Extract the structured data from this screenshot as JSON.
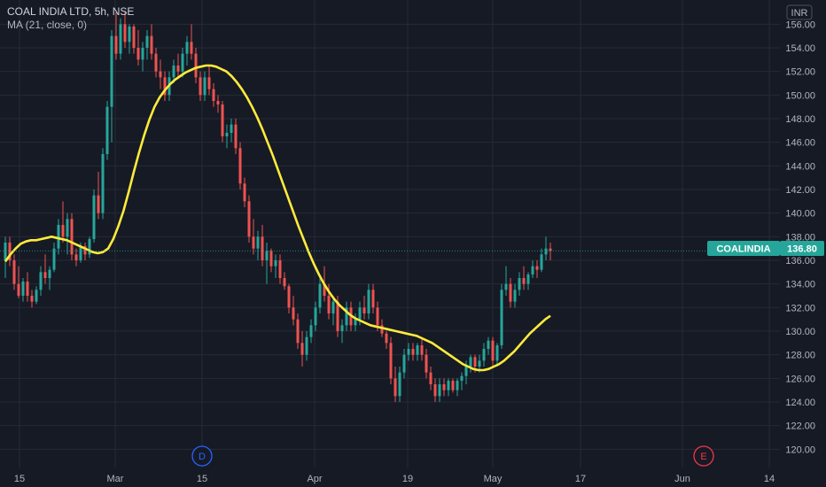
{
  "header": {
    "title": "COAL INDIA LTD, 5h, NSE",
    "indicator": "MA (21, close, 0)"
  },
  "currency": "INR",
  "price_tag": {
    "label": "COALINDIA",
    "value": "136.80"
  },
  "markers": {
    "dividend": "D",
    "earnings": "E"
  },
  "colors": {
    "background": "#161a25",
    "grid": "#252a36",
    "axis_text": "#b2b5be",
    "up": "#26a69a",
    "down": "#ef5350",
    "ma": "#ffeb3b",
    "tag": "#26a69a"
  },
  "chart_data": {
    "type": "candlestick",
    "title": "COAL INDIA LTD, 5h, NSE",
    "ylim": [
      118.6,
      157.6
    ],
    "y_ticks": [
      "120.00",
      "122.00",
      "124.00",
      "126.00",
      "128.00",
      "130.00",
      "132.00",
      "134.00",
      "136.00",
      "138.00",
      "140.00",
      "142.00",
      "144.00",
      "146.00",
      "148.00",
      "150.00",
      "152.00",
      "154.00",
      "156.00"
    ],
    "x_tick_labels": [
      "15",
      "Mar",
      "15",
      "Apr",
      "19",
      "May",
      "17",
      "Jun",
      "14"
    ],
    "last_price": 136.8,
    "ohlc": [
      [
        136.0,
        138.0,
        134.5,
        137.5
      ],
      [
        137.5,
        138.0,
        135.5,
        136.0
      ],
      [
        136.0,
        136.5,
        133.5,
        134.0
      ],
      [
        134.0,
        135.5,
        132.8,
        133.0
      ],
      [
        133.0,
        134.5,
        132.5,
        134.2
      ],
      [
        134.2,
        135.0,
        132.5,
        133.0
      ],
      [
        133.0,
        133.5,
        132.0,
        132.5
      ],
      [
        132.5,
        133.8,
        132.3,
        133.5
      ],
      [
        133.5,
        135.5,
        133.0,
        135.0
      ],
      [
        135.0,
        136.5,
        134.0,
        134.5
      ],
      [
        134.5,
        135.5,
        133.5,
        135.2
      ],
      [
        135.2,
        137.5,
        135.0,
        137.0
      ],
      [
        137.0,
        139.5,
        136.5,
        139.0
      ],
      [
        139.0,
        141.0,
        137.5,
        138.0
      ],
      [
        138.0,
        140.0,
        136.5,
        139.5
      ],
      [
        139.5,
        140.0,
        136.0,
        136.5
      ],
      [
        136.5,
        137.0,
        135.5,
        136.0
      ],
      [
        136.0,
        137.5,
        135.8,
        137.2
      ],
      [
        137.2,
        137.5,
        136.0,
        136.5
      ],
      [
        136.5,
        138.0,
        136.2,
        137.8
      ],
      [
        137.8,
        142.0,
        137.5,
        141.5
      ],
      [
        141.5,
        143.5,
        139.5,
        140.0
      ],
      [
        140.0,
        145.5,
        139.5,
        145.0
      ],
      [
        145.0,
        149.5,
        144.5,
        149.0
      ],
      [
        149.0,
        155.5,
        146.0,
        155.0
      ],
      [
        155.0,
        157.0,
        153.0,
        153.5
      ],
      [
        153.5,
        156.5,
        153.0,
        156.0
      ],
      [
        156.0,
        157.0,
        154.0,
        154.5
      ],
      [
        154.5,
        156.0,
        153.5,
        155.8
      ],
      [
        155.8,
        156.0,
        153.5,
        154.0
      ],
      [
        154.0,
        155.5,
        152.5,
        153.0
      ],
      [
        153.0,
        154.5,
        152.0,
        154.0
      ],
      [
        154.0,
        155.5,
        153.0,
        155.0
      ],
      [
        155.0,
        156.0,
        153.0,
        153.5
      ],
      [
        153.5,
        154.0,
        151.5,
        152.0
      ],
      [
        152.0,
        153.0,
        150.5,
        151.5
      ],
      [
        151.5,
        152.0,
        149.5,
        150.0
      ],
      [
        150.0,
        152.0,
        149.5,
        151.5
      ],
      [
        151.5,
        153.0,
        151.0,
        152.5
      ],
      [
        152.5,
        153.5,
        151.5,
        152.0
      ],
      [
        152.0,
        154.0,
        151.5,
        153.5
      ],
      [
        153.5,
        155.0,
        152.5,
        154.5
      ],
      [
        154.5,
        156.0,
        153.0,
        153.5
      ],
      [
        153.5,
        154.0,
        151.0,
        151.5
      ],
      [
        151.5,
        152.0,
        149.5,
        150.0
      ],
      [
        150.0,
        152.0,
        149.5,
        151.5
      ],
      [
        151.5,
        152.5,
        150.0,
        150.5
      ],
      [
        150.5,
        151.0,
        149.0,
        149.5
      ],
      [
        149.5,
        150.0,
        148.5,
        149.2
      ],
      [
        149.2,
        149.5,
        146.0,
        146.5
      ],
      [
        146.5,
        147.5,
        145.5,
        146.8
      ],
      [
        146.8,
        148.0,
        146.0,
        147.5
      ],
      [
        147.5,
        148.0,
        145.0,
        145.5
      ],
      [
        145.5,
        146.0,
        142.0,
        142.5
      ],
      [
        142.5,
        143.0,
        140.5,
        141.0
      ],
      [
        141.0,
        141.5,
        137.5,
        138.0
      ],
      [
        138.0,
        139.5,
        136.5,
        137.0
      ],
      [
        137.0,
        138.5,
        136.0,
        138.0
      ],
      [
        138.0,
        139.0,
        135.5,
        136.0
      ],
      [
        136.0,
        137.5,
        134.0,
        136.8
      ],
      [
        136.8,
        137.0,
        135.0,
        135.5
      ],
      [
        135.5,
        136.5,
        134.5,
        136.0
      ],
      [
        136.0,
        136.5,
        134.0,
        134.5
      ],
      [
        134.5,
        135.0,
        133.5,
        133.8
      ],
      [
        133.8,
        134.0,
        131.5,
        132.0
      ],
      [
        132.0,
        133.0,
        130.5,
        131.0
      ],
      [
        131.0,
        131.5,
        128.5,
        129.0
      ],
      [
        129.0,
        130.0,
        127.0,
        128.0
      ],
      [
        128.0,
        130.0,
        127.5,
        129.5
      ],
      [
        129.5,
        131.0,
        129.0,
        130.5
      ],
      [
        130.5,
        132.5,
        130.0,
        132.0
      ],
      [
        132.0,
        134.5,
        131.5,
        134.0
      ],
      [
        134.0,
        135.5,
        132.5,
        133.0
      ],
      [
        133.0,
        134.0,
        131.0,
        131.5
      ],
      [
        131.5,
        133.0,
        130.5,
        132.5
      ],
      [
        132.5,
        133.0,
        129.5,
        130.0
      ],
      [
        130.0,
        131.0,
        129.0,
        130.5
      ],
      [
        130.5,
        132.5,
        130.0,
        132.0
      ],
      [
        132.0,
        132.5,
        130.0,
        130.5
      ],
      [
        130.5,
        131.5,
        130.0,
        131.0
      ],
      [
        131.0,
        132.5,
        130.5,
        132.0
      ],
      [
        132.0,
        133.0,
        131.0,
        131.5
      ],
      [
        131.5,
        134.0,
        131.0,
        133.5
      ],
      [
        133.5,
        134.0,
        131.5,
        132.0
      ],
      [
        132.0,
        132.5,
        130.0,
        130.5
      ],
      [
        130.5,
        131.0,
        129.5,
        129.8
      ],
      [
        129.8,
        130.0,
        128.5,
        129.0
      ],
      [
        129.0,
        129.5,
        125.5,
        126.0
      ],
      [
        126.0,
        127.0,
        124.0,
        124.5
      ],
      [
        124.5,
        127.0,
        124.0,
        126.5
      ],
      [
        126.5,
        128.5,
        126.0,
        128.0
      ],
      [
        128.0,
        129.0,
        127.5,
        128.5
      ],
      [
        128.5,
        129.0,
        127.5,
        128.0
      ],
      [
        128.0,
        129.0,
        127.5,
        128.8
      ],
      [
        128.8,
        129.5,
        127.5,
        128.0
      ],
      [
        128.0,
        128.5,
        126.0,
        126.5
      ],
      [
        126.5,
        127.0,
        125.0,
        125.5
      ],
      [
        125.5,
        126.0,
        124.0,
        124.5
      ],
      [
        124.5,
        126.0,
        124.0,
        125.5
      ],
      [
        125.5,
        126.0,
        124.5,
        125.0
      ],
      [
        125.0,
        126.0,
        124.5,
        125.8
      ],
      [
        125.8,
        126.0,
        124.8,
        125.0
      ],
      [
        125.0,
        126.0,
        124.5,
        125.8
      ],
      [
        125.8,
        126.5,
        125.0,
        126.2
      ],
      [
        126.2,
        127.5,
        125.5,
        127.0
      ],
      [
        127.0,
        128.0,
        126.5,
        127.8
      ],
      [
        127.8,
        128.0,
        126.5,
        127.0
      ],
      [
        127.0,
        128.0,
        126.5,
        127.5
      ],
      [
        127.5,
        129.0,
        127.0,
        128.5
      ],
      [
        128.5,
        129.5,
        128.0,
        129.2
      ],
      [
        129.2,
        129.5,
        127.0,
        127.5
      ],
      [
        127.5,
        129.0,
        127.0,
        128.8
      ],
      [
        128.8,
        134.0,
        128.5,
        133.5
      ],
      [
        133.5,
        135.5,
        133.0,
        134.0
      ],
      [
        134.0,
        134.5,
        132.0,
        132.5
      ],
      [
        132.5,
        134.0,
        132.0,
        133.5
      ],
      [
        133.5,
        135.0,
        133.0,
        134.5
      ],
      [
        134.5,
        135.5,
        133.5,
        134.0
      ],
      [
        134.0,
        135.0,
        133.5,
        134.8
      ],
      [
        134.8,
        136.0,
        134.5,
        135.5
      ],
      [
        135.5,
        136.0,
        134.5,
        135.2
      ],
      [
        135.2,
        137.0,
        135.0,
        136.5
      ],
      [
        136.5,
        138.0,
        136.0,
        137.0
      ],
      [
        137.0,
        137.5,
        136.0,
        136.8
      ]
    ],
    "ma_series": {
      "name": "MA (21, close, 0)",
      "values": [
        135.9,
        136.5,
        137.0,
        137.4,
        137.6,
        137.7,
        137.7,
        137.8,
        137.9,
        138.0,
        137.9,
        137.8,
        137.7,
        137.5,
        137.3,
        137.1,
        136.9,
        136.7,
        136.6,
        136.7,
        137.0,
        137.8,
        138.9,
        140.2,
        141.8,
        143.5,
        145.1,
        146.6,
        147.9,
        149.0,
        149.8,
        150.4,
        150.9,
        151.3,
        151.6,
        151.9,
        152.1,
        152.3,
        152.4,
        152.5,
        152.5,
        152.4,
        152.2,
        152.0,
        151.6,
        151.1,
        150.5,
        149.8,
        149.0,
        148.1,
        147.1,
        146.0,
        144.9,
        143.7,
        142.5,
        141.3,
        140.1,
        138.9,
        137.8,
        136.7,
        135.7,
        134.8,
        134.0,
        133.3,
        132.7,
        132.2,
        131.8,
        131.4,
        131.1,
        130.9,
        130.7,
        130.5,
        130.4,
        130.3,
        130.2,
        130.1,
        130.0,
        129.9,
        129.8,
        129.7,
        129.6,
        129.4,
        129.2,
        129.0,
        128.7,
        128.4,
        128.1,
        127.8,
        127.5,
        127.2,
        127.0,
        126.8,
        126.7,
        126.7,
        126.8,
        127.0,
        127.2,
        127.5,
        127.9,
        128.3,
        128.8,
        129.3,
        129.8,
        130.2,
        130.6,
        131.0,
        131.3
      ]
    }
  }
}
